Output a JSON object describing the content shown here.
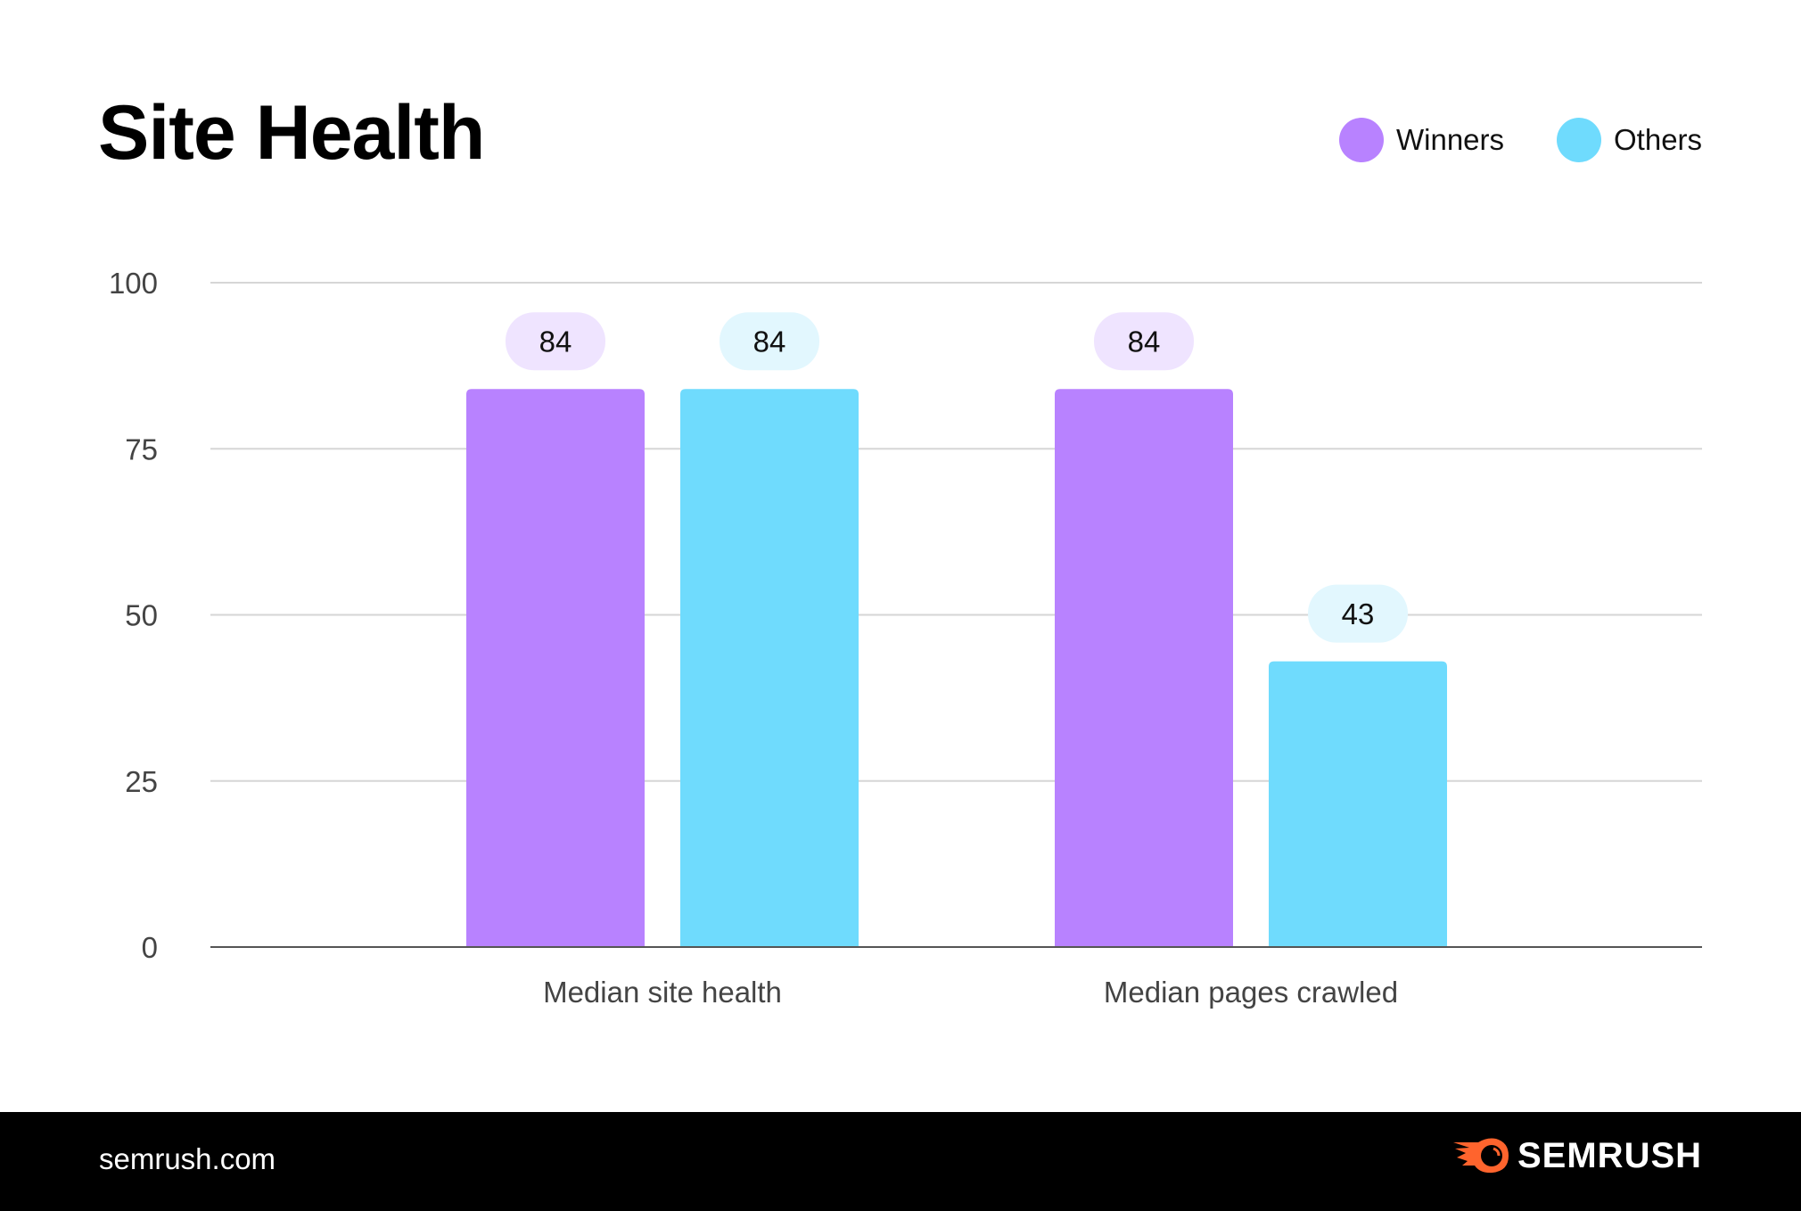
{
  "chart_data": {
    "type": "bar",
    "title": "Site Health",
    "categories": [
      "Median site health",
      "Median pages crawled"
    ],
    "series": [
      {
        "name": "Winners",
        "values": [
          84,
          84
        ],
        "color": "#b882ff",
        "label_bg": "#efe4ff"
      },
      {
        "name": "Others",
        "values": [
          84,
          43
        ],
        "color": "#6fdbfd",
        "label_bg": "#e2f7fe"
      }
    ],
    "ylim": [
      0,
      100
    ],
    "yticks": [
      0,
      25,
      50,
      75,
      100
    ],
    "grid": true,
    "legend_position": "top-right",
    "xlabel": "",
    "ylabel": ""
  },
  "footer": {
    "url": "semrush.com",
    "logo": "SEMRUSH"
  }
}
